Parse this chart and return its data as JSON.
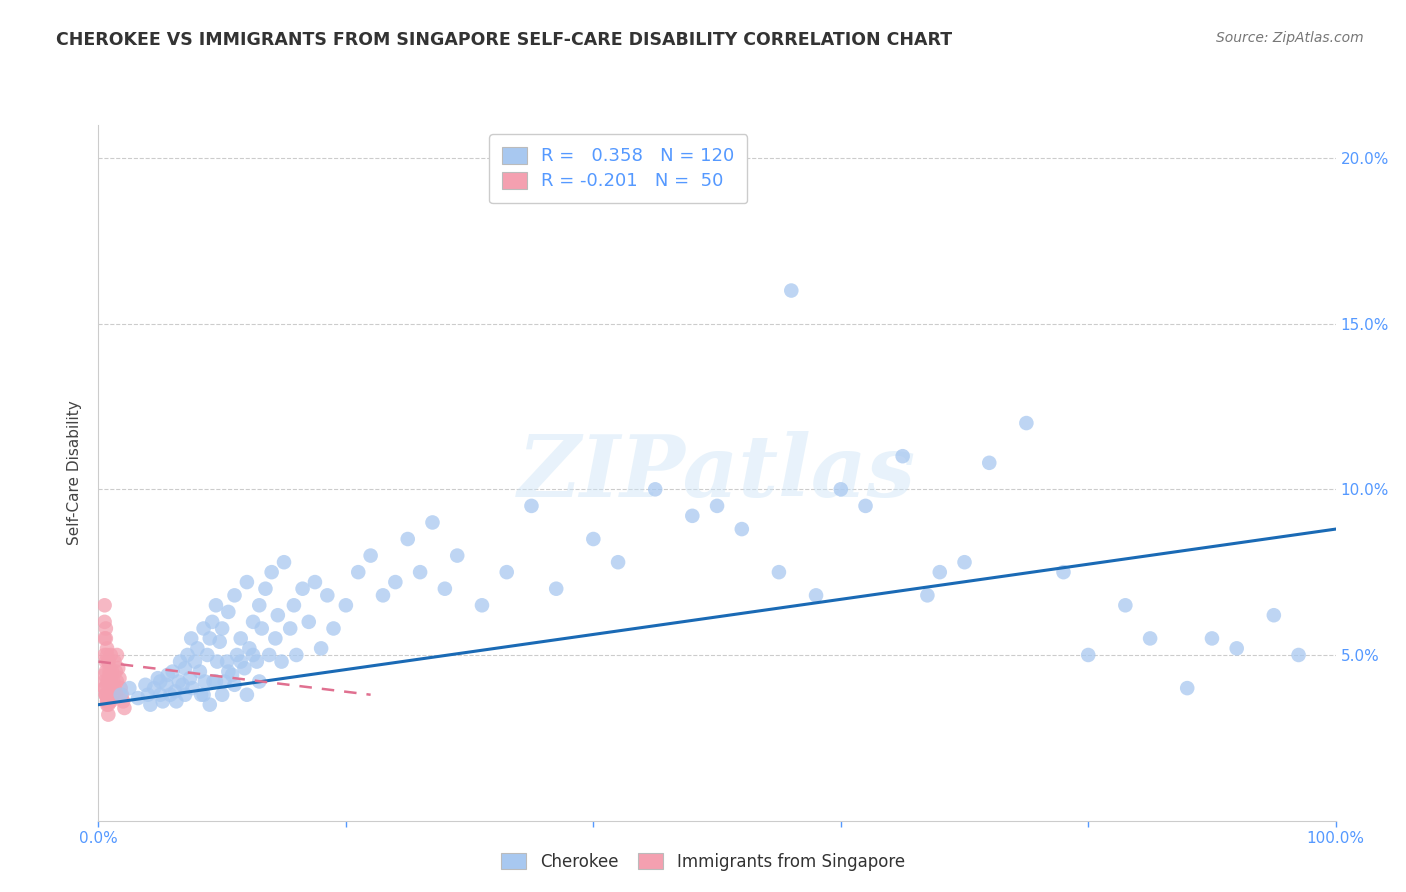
{
  "title": "CHEROKEE VS IMMIGRANTS FROM SINGAPORE SELF-CARE DISABILITY CORRELATION CHART",
  "source": "Source: ZipAtlas.com",
  "ylabel": "Self-Care Disability",
  "xlim": [
    0.0,
    1.0
  ],
  "ylim": [
    0.0,
    0.21
  ],
  "xtick_positions": [
    0.0,
    0.2,
    0.4,
    0.6,
    0.8,
    1.0
  ],
  "xtick_labels": [
    "0.0%",
    "",
    "",
    "",
    "",
    "100.0%"
  ],
  "ytick_positions": [
    0.0,
    0.05,
    0.1,
    0.15,
    0.2
  ],
  "ytick_labels_right": [
    "",
    "5.0%",
    "10.0%",
    "15.0%",
    "20.0%"
  ],
  "cherokee_color": "#a8c8f0",
  "singapore_color": "#f4a0b0",
  "trendline_cherokee_color": "#1a6ab5",
  "trendline_singapore_color": "#e07090",
  "cherokee_R": 0.358,
  "cherokee_N": 120,
  "singapore_R": -0.201,
  "singapore_N": 50,
  "watermark": "ZIPatlas",
  "background_color": "#ffffff",
  "grid_color": "#cccccc",
  "axis_color": "#5599ff",
  "title_color": "#333333",
  "cherokee_x": [
    0.018,
    0.025,
    0.032,
    0.038,
    0.04,
    0.042,
    0.045,
    0.048,
    0.05,
    0.05,
    0.052,
    0.055,
    0.056,
    0.058,
    0.06,
    0.062,
    0.063,
    0.065,
    0.066,
    0.068,
    0.07,
    0.07,
    0.072,
    0.074,
    0.075,
    0.076,
    0.078,
    0.08,
    0.082,
    0.083,
    0.085,
    0.086,
    0.088,
    0.09,
    0.092,
    0.093,
    0.095,
    0.096,
    0.098,
    0.1,
    0.102,
    0.104,
    0.105,
    0.108,
    0.11,
    0.112,
    0.115,
    0.118,
    0.12,
    0.122,
    0.125,
    0.128,
    0.13,
    0.132,
    0.135,
    0.138,
    0.14,
    0.143,
    0.145,
    0.148,
    0.15,
    0.155,
    0.158,
    0.16,
    0.165,
    0.17,
    0.175,
    0.18,
    0.185,
    0.19,
    0.2,
    0.21,
    0.22,
    0.23,
    0.24,
    0.25,
    0.26,
    0.27,
    0.28,
    0.29,
    0.31,
    0.33,
    0.35,
    0.37,
    0.4,
    0.42,
    0.45,
    0.48,
    0.5,
    0.52,
    0.55,
    0.56,
    0.58,
    0.6,
    0.62,
    0.65,
    0.67,
    0.68,
    0.7,
    0.72,
    0.75,
    0.78,
    0.8,
    0.83,
    0.85,
    0.88,
    0.9,
    0.92,
    0.95,
    0.97,
    0.085,
    0.09,
    0.095,
    0.1,
    0.105,
    0.11,
    0.115,
    0.12,
    0.125,
    0.13
  ],
  "cherokee_y": [
    0.038,
    0.04,
    0.037,
    0.041,
    0.038,
    0.035,
    0.04,
    0.043,
    0.038,
    0.042,
    0.036,
    0.041,
    0.044,
    0.038,
    0.045,
    0.039,
    0.036,
    0.042,
    0.048,
    0.041,
    0.046,
    0.038,
    0.05,
    0.043,
    0.055,
    0.04,
    0.048,
    0.052,
    0.045,
    0.038,
    0.058,
    0.042,
    0.05,
    0.055,
    0.06,
    0.042,
    0.065,
    0.048,
    0.054,
    0.058,
    0.042,
    0.048,
    0.063,
    0.044,
    0.068,
    0.05,
    0.055,
    0.046,
    0.072,
    0.052,
    0.06,
    0.048,
    0.065,
    0.058,
    0.07,
    0.05,
    0.075,
    0.055,
    0.062,
    0.048,
    0.078,
    0.058,
    0.065,
    0.05,
    0.07,
    0.06,
    0.072,
    0.052,
    0.068,
    0.058,
    0.065,
    0.075,
    0.08,
    0.068,
    0.072,
    0.085,
    0.075,
    0.09,
    0.07,
    0.08,
    0.065,
    0.075,
    0.095,
    0.07,
    0.085,
    0.078,
    0.1,
    0.092,
    0.095,
    0.088,
    0.075,
    0.16,
    0.068,
    0.1,
    0.095,
    0.11,
    0.068,
    0.075,
    0.078,
    0.108,
    0.12,
    0.075,
    0.05,
    0.065,
    0.055,
    0.04,
    0.055,
    0.052,
    0.062,
    0.05,
    0.038,
    0.035,
    0.042,
    0.038,
    0.045,
    0.041,
    0.048,
    0.038,
    0.05,
    0.042
  ],
  "singapore_x": [
    0.005,
    0.005,
    0.006,
    0.006,
    0.007,
    0.007,
    0.008,
    0.008,
    0.008,
    0.009,
    0.009,
    0.01,
    0.01,
    0.01,
    0.011,
    0.011,
    0.012,
    0.012,
    0.013,
    0.013,
    0.014,
    0.014,
    0.015,
    0.015,
    0.016,
    0.017,
    0.018,
    0.019,
    0.02,
    0.021,
    0.005,
    0.006,
    0.007,
    0.008,
    0.009,
    0.005,
    0.006,
    0.007,
    0.008,
    0.009,
    0.005,
    0.006,
    0.007,
    0.008,
    0.005,
    0.006,
    0.007,
    0.005,
    0.006,
    0.005
  ],
  "singapore_y": [
    0.06,
    0.04,
    0.055,
    0.038,
    0.05,
    0.036,
    0.048,
    0.042,
    0.035,
    0.045,
    0.038,
    0.05,
    0.042,
    0.036,
    0.045,
    0.04,
    0.042,
    0.038,
    0.048,
    0.04,
    0.045,
    0.038,
    0.05,
    0.042,
    0.046,
    0.043,
    0.04,
    0.038,
    0.036,
    0.034,
    0.065,
    0.058,
    0.052,
    0.048,
    0.044,
    0.05,
    0.045,
    0.042,
    0.038,
    0.036,
    0.04,
    0.038,
    0.035,
    0.032,
    0.042,
    0.038,
    0.036,
    0.055,
    0.048,
    0.044
  ],
  "cherokee_trend_x": [
    0.0,
    1.0
  ],
  "cherokee_trend_y": [
    0.035,
    0.088
  ],
  "singapore_trend_x": [
    0.0,
    0.22
  ],
  "singapore_trend_y": [
    0.048,
    0.038
  ]
}
